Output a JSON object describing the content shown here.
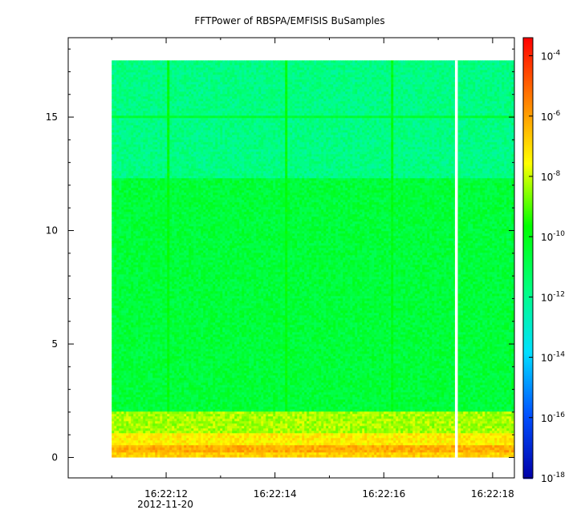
{
  "chart_data": {
    "type": "heatmap",
    "title": "FFTPower of RBSPA/EMFISIS  BuSamples",
    "x_ticks": [
      "16:22:12",
      "16:22:14",
      "16:22:16",
      "16:22:18"
    ],
    "x_tick_values_sec": [
      12,
      14,
      16,
      18
    ],
    "x_date_label": "2012-11-20",
    "xlim_sec": [
      10.2,
      18.4
    ],
    "data_x_range_sec": [
      11.0,
      18.4
    ],
    "gap_x_sec": 17.33,
    "y_ticks": [
      "0",
      "5",
      "10",
      "15"
    ],
    "y_tick_values": [
      0,
      5,
      10,
      15
    ],
    "ylim": [
      -0.9,
      18.5
    ],
    "data_y_range": [
      0,
      17.5
    ],
    "colorbar": {
      "scale": "log",
      "range_exp": [
        -18,
        -3.4
      ],
      "tick_base": "10",
      "tick_exponents": [
        "-4",
        "-6",
        "-8",
        "-10",
        "-12",
        "-14",
        "-16",
        "-18"
      ],
      "tick_values_exp": [
        -4,
        -6,
        -8,
        -10,
        -12,
        -14,
        -16,
        -18
      ],
      "colors": [
        "#0000aa",
        "#0050ff",
        "#00e0ff",
        "#00ff80",
        "#00ff00",
        "#ffff00",
        "#ff8000",
        "#ff0000"
      ]
    },
    "bands": [
      {
        "y": [
          0.0,
          0.25
        ],
        "log_power": -6.8
      },
      {
        "y": [
          0.25,
          0.5
        ],
        "log_power": -6.2
      },
      {
        "y": [
          0.5,
          1.1
        ],
        "log_power": -7.3
      },
      {
        "y": [
          1.1,
          2.0
        ],
        "log_power": -8.3
      },
      {
        "y": [
          2.0,
          12.3
        ],
        "log_power": -10.6
      },
      {
        "y": [
          12.3,
          17.5
        ],
        "log_power": -11.8
      }
    ],
    "line_features": [
      {
        "axis": "y",
        "value": 15.0,
        "log_power": -10.5
      },
      {
        "axis": "x",
        "value": 12.05,
        "log_power": -9.8
      },
      {
        "axis": "x",
        "value": 14.2,
        "log_power": -9.8
      },
      {
        "axis": "x",
        "value": 16.15,
        "log_power": -10.0
      }
    ]
  }
}
